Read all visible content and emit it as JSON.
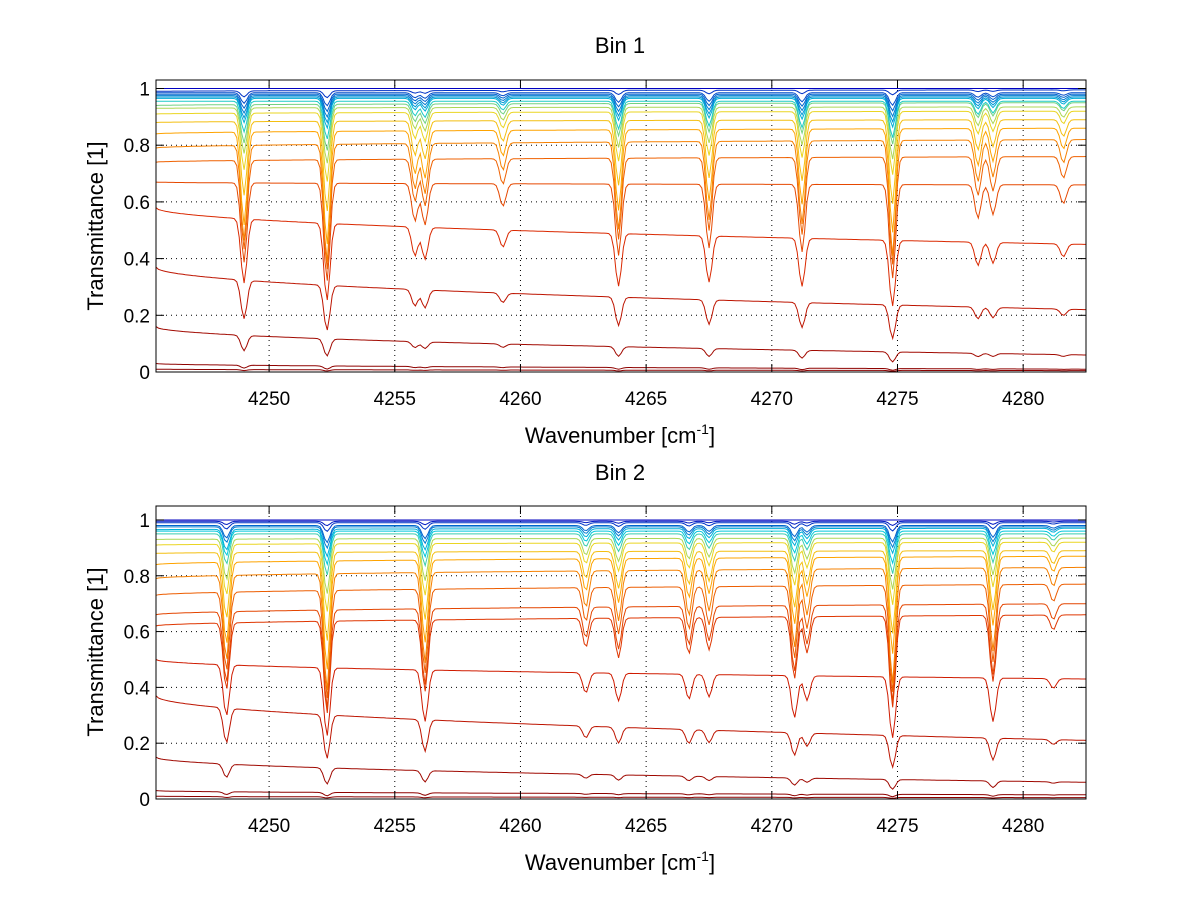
{
  "figure": {
    "background": "#ffffff",
    "grid_color": "#000000",
    "colormap_low": "#0000bf",
    "colormap_high": "#8b0000"
  },
  "chart_data": [
    {
      "type": "line",
      "title": "Bin 1",
      "xlabel": "Wavenumber [cm",
      "xlabel_sup": "-1",
      "xlabel_end": "]",
      "ylabel": "Transmittance [1]",
      "xlim": [
        4245.5,
        4282.5
      ],
      "ylim": [
        0,
        1.03
      ],
      "xticks": [
        4250,
        4255,
        4260,
        4265,
        4270,
        4275,
        4280
      ],
      "xtick_labels": [
        "4250",
        "4255",
        "4260",
        "4265",
        "4270",
        "4275",
        "4280"
      ],
      "yticks": [
        0,
        0.2,
        0.4,
        0.6,
        0.8,
        1
      ],
      "ytick_labels": [
        "0",
        "0.2",
        "0.4",
        "0.6",
        "0.8",
        "1"
      ],
      "grid": true,
      "legend": "none",
      "absorption_lines": [
        {
          "x": 4249.0,
          "rel_depth": 0.42
        },
        {
          "x": 4252.3,
          "rel_depth": 0.52
        },
        {
          "x": 4255.8,
          "rel_depth": 0.2
        },
        {
          "x": 4256.2,
          "rel_depth": 0.22
        },
        {
          "x": 4259.3,
          "rel_depth": 0.12
        },
        {
          "x": 4263.9,
          "rel_depth": 0.38
        },
        {
          "x": 4267.5,
          "rel_depth": 0.34
        },
        {
          "x": 4271.2,
          "rel_depth": 0.36
        },
        {
          "x": 4274.8,
          "rel_depth": 0.5
        },
        {
          "x": 4278.2,
          "rel_depth": 0.18
        },
        {
          "x": 4278.8,
          "rel_depth": 0.16
        },
        {
          "x": 4281.6,
          "rel_depth": 0.1
        }
      ],
      "curves": [
        {
          "start": 1.0,
          "end": 1.0
        },
        {
          "start": 0.99,
          "end": 0.995
        },
        {
          "start": 0.985,
          "end": 0.985
        },
        {
          "start": 0.98,
          "end": 0.98
        },
        {
          "start": 0.975,
          "end": 0.975
        },
        {
          "start": 0.97,
          "end": 0.97
        },
        {
          "start": 0.965,
          "end": 0.965
        },
        {
          "start": 0.955,
          "end": 0.955
        },
        {
          "start": 0.94,
          "end": 0.95
        },
        {
          "start": 0.93,
          "end": 0.935
        },
        {
          "start": 0.91,
          "end": 0.92
        },
        {
          "start": 0.88,
          "end": 0.89
        },
        {
          "start": 0.84,
          "end": 0.86
        },
        {
          "start": 0.79,
          "end": 0.82
        },
        {
          "start": 0.74,
          "end": 0.76
        },
        {
          "start": 0.67,
          "end": 0.66
        },
        {
          "start": 0.58,
          "end": 0.45
        },
        {
          "start": 0.37,
          "end": 0.22
        },
        {
          "start": 0.16,
          "end": 0.06
        },
        {
          "start": 0.03,
          "end": 0.01
        },
        {
          "start": 0.01,
          "end": 0.005
        }
      ]
    },
    {
      "type": "line",
      "title": "Bin 2",
      "xlabel": "Wavenumber [cm",
      "xlabel_sup": "-1",
      "xlabel_end": "]",
      "ylabel": "Transmittance [1]",
      "xlim": [
        4245.5,
        4282.5
      ],
      "ylim": [
        0,
        1.05
      ],
      "xticks": [
        4250,
        4255,
        4260,
        4265,
        4270,
        4275,
        4280
      ],
      "xtick_labels": [
        "4250",
        "4255",
        "4260",
        "4265",
        "4270",
        "4275",
        "4280"
      ],
      "yticks": [
        0,
        0.2,
        0.4,
        0.6,
        0.8,
        1
      ],
      "ytick_labels": [
        "0",
        "0.2",
        "0.4",
        "0.6",
        "0.8",
        "1"
      ],
      "grid": true,
      "legend": "none",
      "absorption_lines": [
        {
          "x": 4248.3,
          "rel_depth": 0.38
        },
        {
          "x": 4252.3,
          "rel_depth": 0.52
        },
        {
          "x": 4256.2,
          "rel_depth": 0.4
        },
        {
          "x": 4262.6,
          "rel_depth": 0.16
        },
        {
          "x": 4263.9,
          "rel_depth": 0.22
        },
        {
          "x": 4266.7,
          "rel_depth": 0.2
        },
        {
          "x": 4267.5,
          "rel_depth": 0.18
        },
        {
          "x": 4270.9,
          "rel_depth": 0.34
        },
        {
          "x": 4271.4,
          "rel_depth": 0.2
        },
        {
          "x": 4274.8,
          "rel_depth": 0.5
        },
        {
          "x": 4278.8,
          "rel_depth": 0.36
        },
        {
          "x": 4281.2,
          "rel_depth": 0.08
        }
      ],
      "curves": [
        {
          "start": 1.0,
          "end": 1.0
        },
        {
          "start": 0.995,
          "end": 0.995
        },
        {
          "start": 0.99,
          "end": 0.99
        },
        {
          "start": 0.98,
          "end": 0.98
        },
        {
          "start": 0.975,
          "end": 0.975
        },
        {
          "start": 0.965,
          "end": 0.97
        },
        {
          "start": 0.96,
          "end": 0.96
        },
        {
          "start": 0.95,
          "end": 0.95
        },
        {
          "start": 0.93,
          "end": 0.935
        },
        {
          "start": 0.91,
          "end": 0.92
        },
        {
          "start": 0.88,
          "end": 0.89
        },
        {
          "start": 0.84,
          "end": 0.87
        },
        {
          "start": 0.79,
          "end": 0.83
        },
        {
          "start": 0.73,
          "end": 0.77
        },
        {
          "start": 0.66,
          "end": 0.7
        },
        {
          "start": 0.62,
          "end": 0.66
        },
        {
          "start": 0.5,
          "end": 0.43
        },
        {
          "start": 0.37,
          "end": 0.21
        },
        {
          "start": 0.15,
          "end": 0.06
        },
        {
          "start": 0.03,
          "end": 0.015
        },
        {
          "start": 0.01,
          "end": 0.005
        }
      ]
    }
  ]
}
